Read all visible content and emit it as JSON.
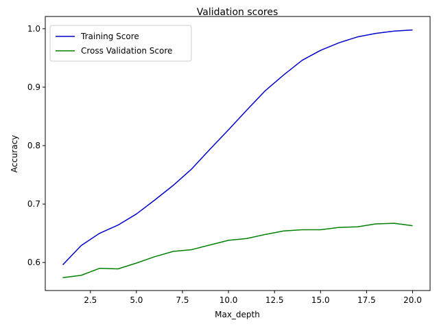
{
  "chart_data": {
    "type": "line",
    "title": "Validation scores",
    "xlabel": "Max_depth",
    "ylabel": "Accuracy",
    "xlim": [
      0.05,
      20.95
    ],
    "ylim": [
      0.552,
      1.021
    ],
    "xticks": [
      2.5,
      5.0,
      7.5,
      10.0,
      12.5,
      15.0,
      17.5,
      20.0
    ],
    "xtick_labels": [
      "2.5",
      "5.0",
      "7.5",
      "10.0",
      "12.5",
      "15.0",
      "17.5",
      "20.0"
    ],
    "yticks": [
      0.6,
      0.7,
      0.8,
      0.9,
      1.0
    ],
    "ytick_labels": [
      "0.6",
      "0.7",
      "0.8",
      "0.9",
      "1.0"
    ],
    "grid": false,
    "legend_position": "top-left",
    "x": [
      1,
      2,
      3,
      4,
      5,
      6,
      7,
      8,
      9,
      10,
      11,
      12,
      13,
      14,
      15,
      16,
      17,
      18,
      19,
      20
    ],
    "series": [
      {
        "name": "Training Score",
        "color": "#0000cc",
        "values": [
          0.596,
          0.629,
          0.65,
          0.664,
          0.683,
          0.707,
          0.732,
          0.76,
          0.794,
          0.827,
          0.861,
          0.894,
          0.921,
          0.946,
          0.963,
          0.976,
          0.986,
          0.992,
          0.996,
          0.998
        ]
      },
      {
        "name": "Cross Validation Score",
        "color": "#008000",
        "values": [
          0.574,
          0.578,
          0.59,
          0.589,
          0.599,
          0.61,
          0.619,
          0.622,
          0.63,
          0.638,
          0.641,
          0.648,
          0.654,
          0.656,
          0.656,
          0.66,
          0.661,
          0.666,
          0.667,
          0.663
        ]
      }
    ]
  }
}
